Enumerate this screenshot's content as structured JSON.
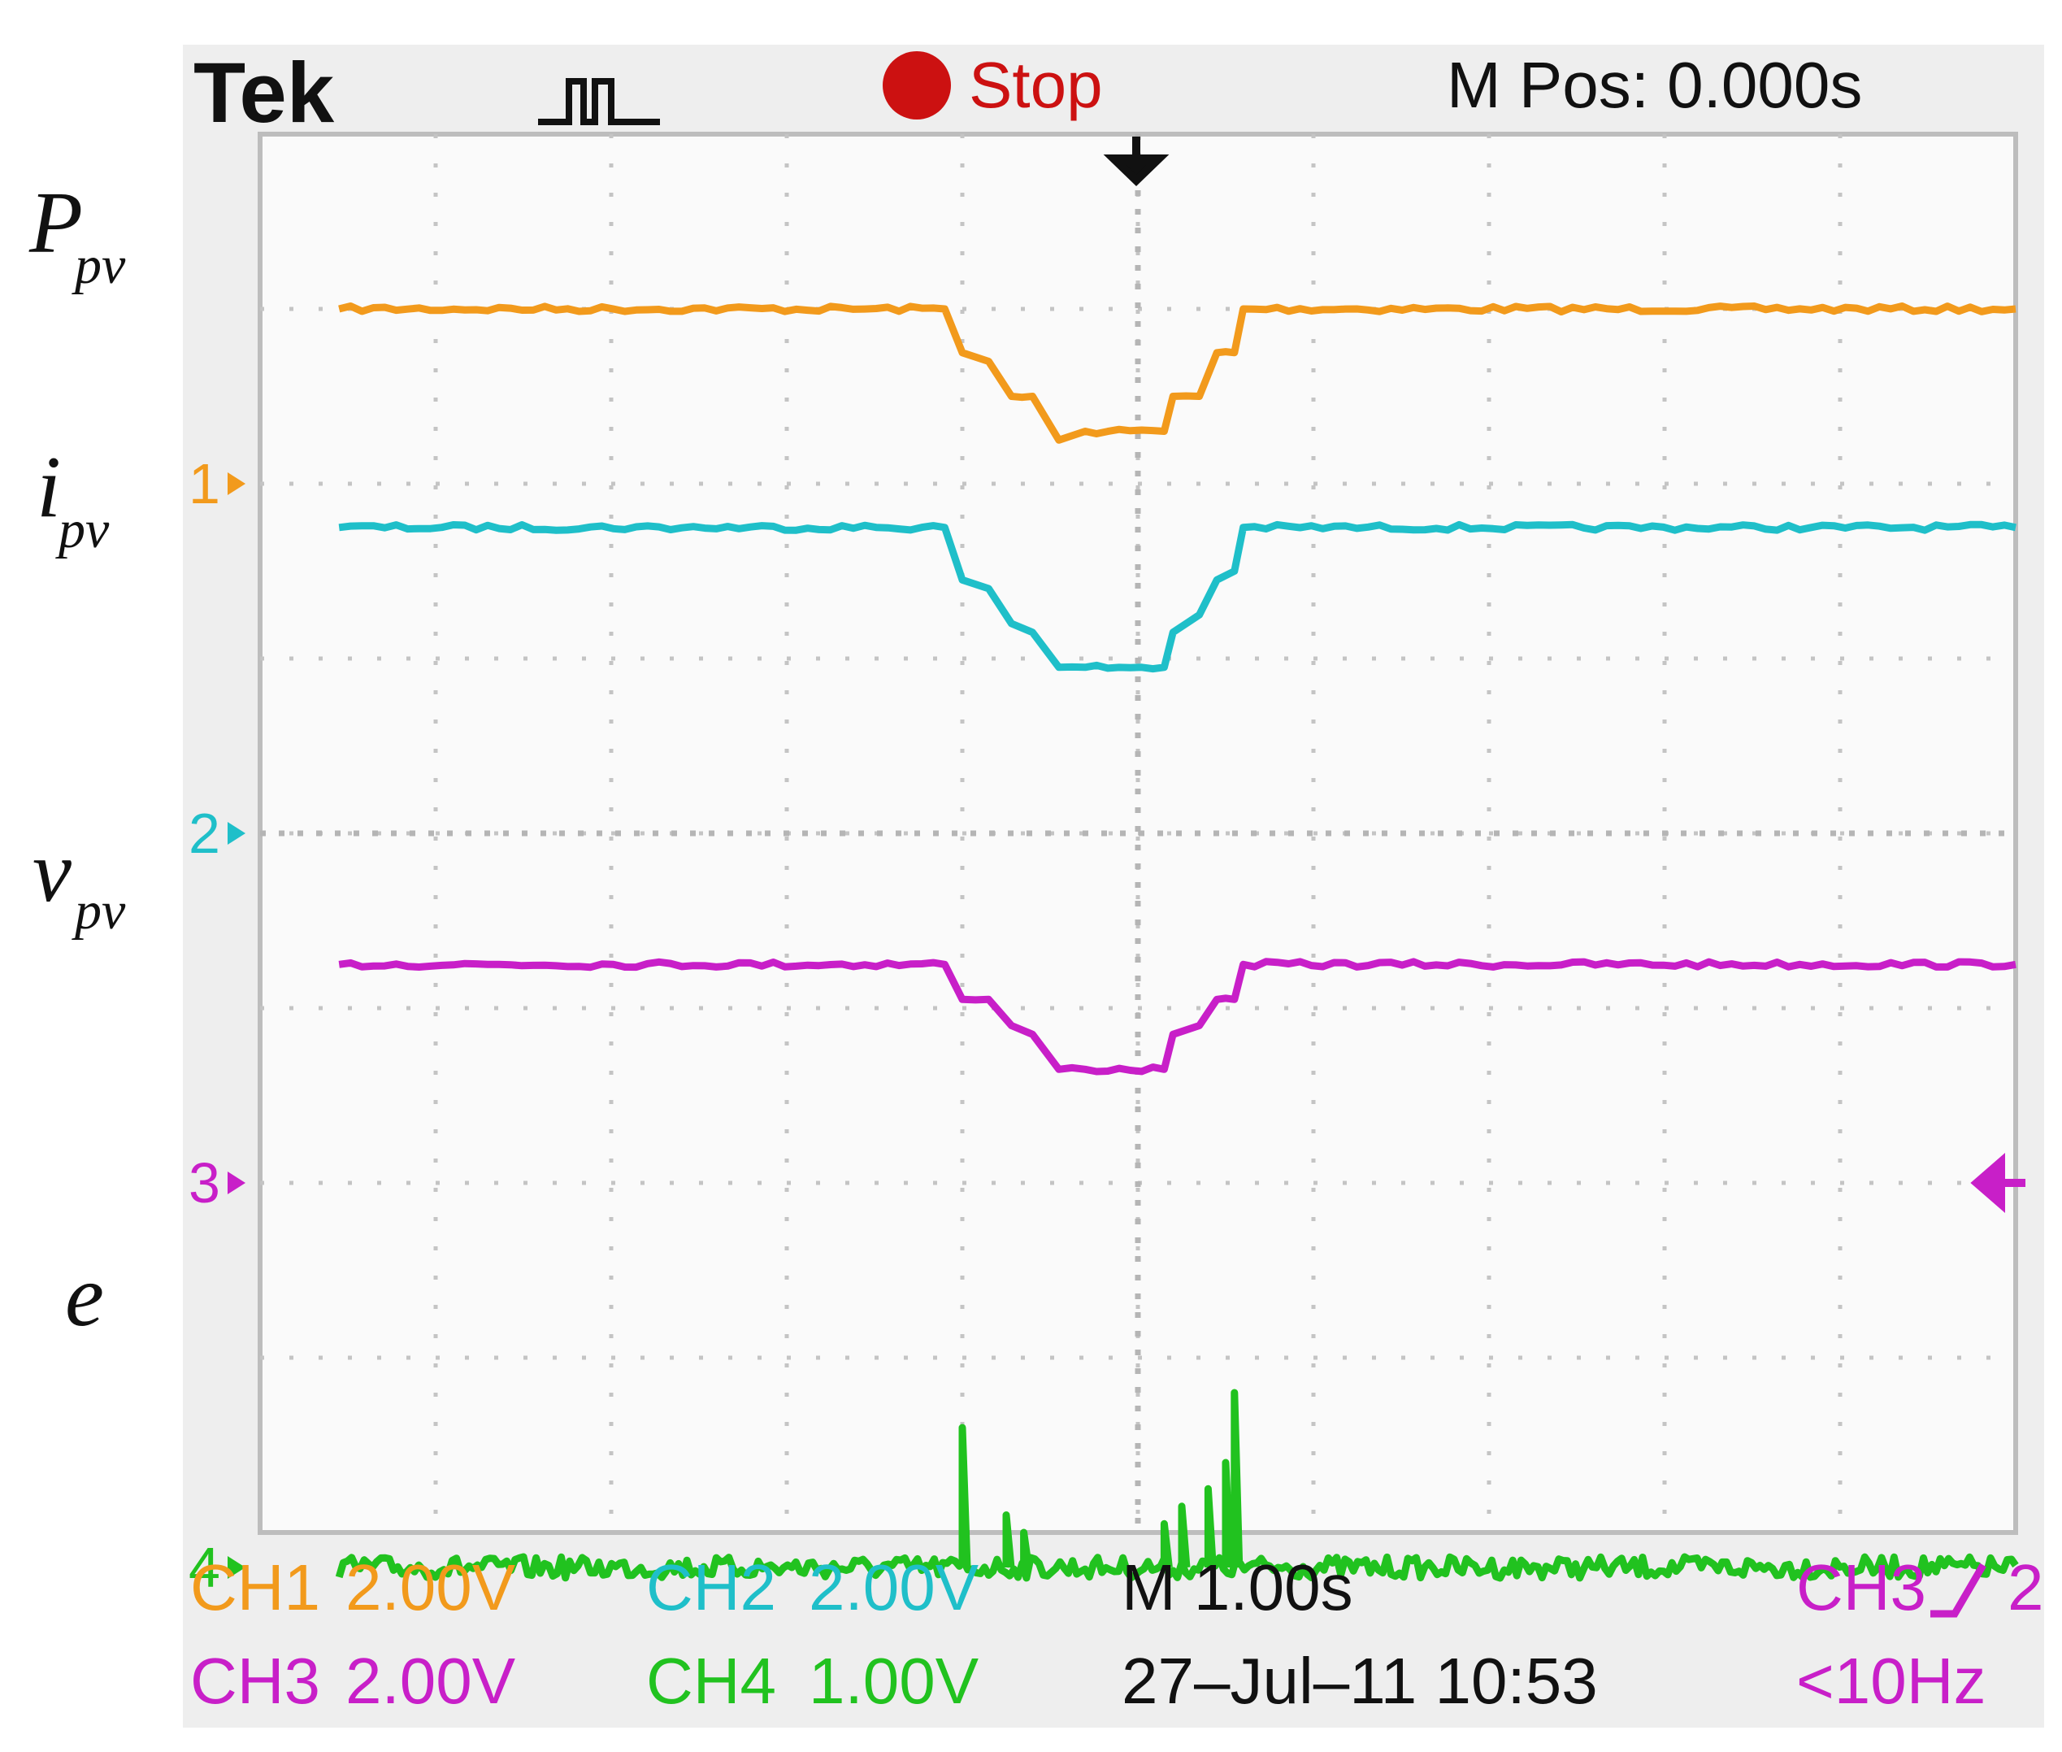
{
  "header": {
    "brand": "Tek",
    "run_state": "Stop",
    "position": "M Pos: 0.000s",
    "stop_color": "#cc1111"
  },
  "footer": {
    "ch1": {
      "name": "CH1",
      "scale": "2.00V"
    },
    "ch2": {
      "name": "CH2",
      "scale": "2.00V"
    },
    "ch3": {
      "name": "CH3",
      "scale": "2.00V"
    },
    "ch4": {
      "name": "CH4",
      "scale": "1.00V"
    },
    "timebase": "M 1.00s",
    "datetime": "27–Jul–11 10:53",
    "trigger_source": "CH3",
    "trigger_level": "2",
    "trigger_freq": "<10Hz"
  },
  "trace_labels": {
    "p": {
      "main": "P",
      "sub": "pv"
    },
    "i": {
      "main": "i",
      "sub": "pv"
    },
    "v": {
      "main": "v",
      "sub": "pv"
    },
    "e": {
      "main": "e"
    }
  },
  "chart_data": {
    "type": "line",
    "grid": true,
    "x_divisions": 10,
    "y_divisions": 8,
    "xlim": [
      -5,
      5
    ],
    "ylim": [
      -4,
      4
    ],
    "series": [
      {
        "channel": "1",
        "marker_label": "1",
        "color": "#f29a1c",
        "ground": 2.0,
        "x": [
          -4.55,
          -1.1,
          -1.0,
          -0.85,
          -0.72,
          -0.6,
          -0.45,
          -0.3,
          0.15,
          0.2,
          0.35,
          0.45,
          0.55,
          0.6,
          5.0
        ],
        "y": [
          3.0,
          3.0,
          2.75,
          2.7,
          2.5,
          2.5,
          2.25,
          2.3,
          2.3,
          2.5,
          2.5,
          2.75,
          2.75,
          3.0,
          3.0
        ]
      },
      {
        "channel": "2",
        "marker_label": "2",
        "color": "#1fbfc9",
        "ground": 0.0,
        "x": [
          -4.55,
          -1.1,
          -1.0,
          -0.85,
          -0.72,
          -0.6,
          -0.45,
          -0.3,
          0.15,
          0.2,
          0.35,
          0.45,
          0.55,
          0.6,
          5.0
        ],
        "y": [
          1.75,
          1.75,
          1.45,
          1.4,
          1.2,
          1.15,
          0.95,
          0.95,
          0.95,
          1.15,
          1.25,
          1.45,
          1.5,
          1.75,
          1.75
        ]
      },
      {
        "channel": "3",
        "marker_label": "3",
        "color": "#c81fc8",
        "ground": -2.0,
        "x": [
          -4.55,
          -1.1,
          -1.0,
          -0.85,
          -0.72,
          -0.6,
          -0.45,
          -0.3,
          0.15,
          0.2,
          0.35,
          0.45,
          0.55,
          0.6,
          5.0
        ],
        "y": [
          -0.75,
          -0.75,
          -0.95,
          -0.95,
          -1.1,
          -1.15,
          -1.35,
          -1.35,
          -1.35,
          -1.15,
          -1.1,
          -0.95,
          -0.95,
          -0.75,
          -0.75
        ]
      },
      {
        "channel": "4",
        "marker_label": "4",
        "color": "#21c21f",
        "ground": -4.2,
        "baseline": -4.2,
        "spikes": [
          [
            -1.0,
            -3.4
          ],
          [
            -0.75,
            -3.9
          ],
          [
            -0.65,
            -4.0
          ],
          [
            0.15,
            -3.95
          ],
          [
            0.25,
            -3.85
          ],
          [
            0.4,
            -3.75
          ],
          [
            0.5,
            -3.6
          ],
          [
            0.55,
            -3.2
          ]
        ]
      }
    ],
    "trigger_marker": {
      "x": 0.0
    },
    "trigger_level_marker": {
      "y": -2.0,
      "color": "#c81fc8"
    }
  }
}
